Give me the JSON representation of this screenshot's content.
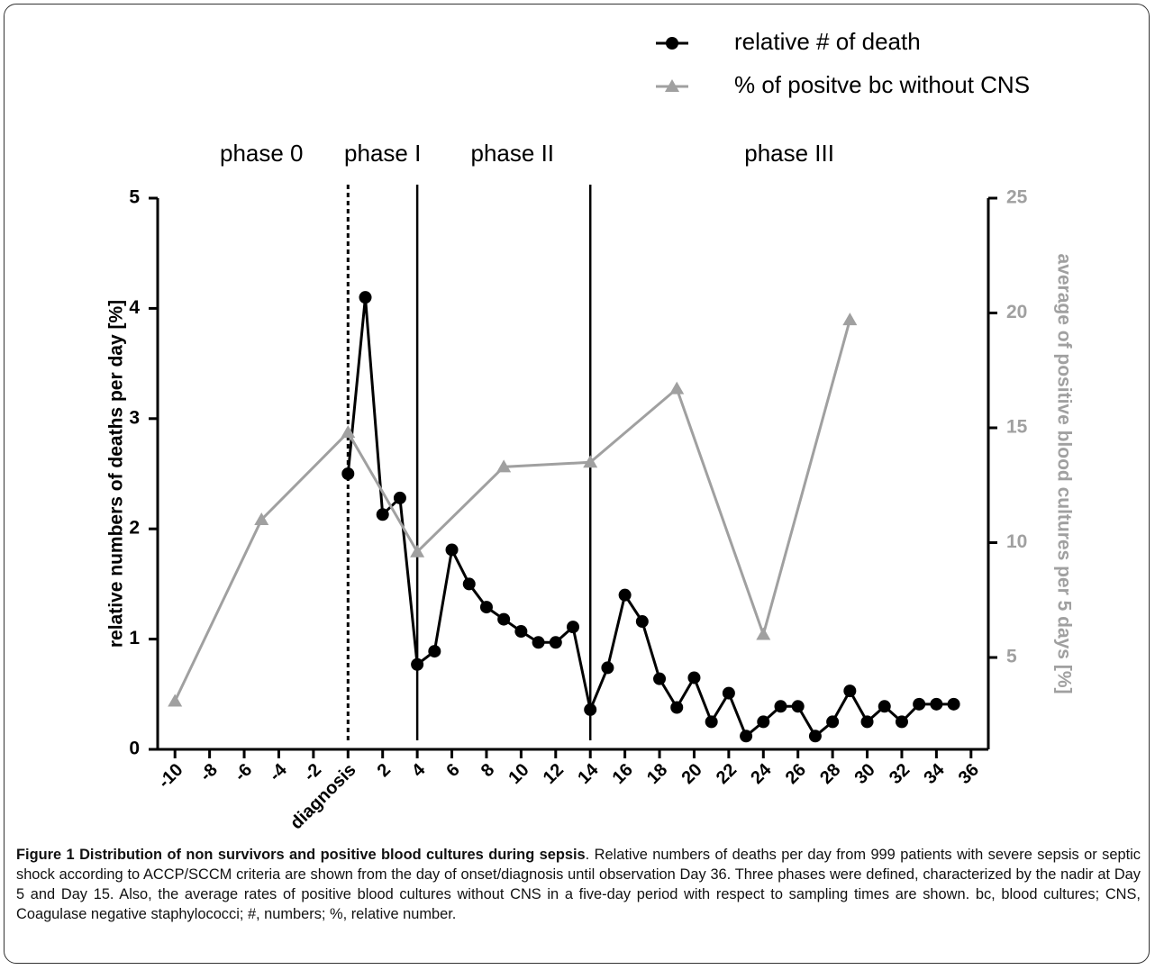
{
  "chart_data": {
    "type": "line",
    "legend": "top-right",
    "phase_labels": [
      {
        "x": -5,
        "label": "phase 0"
      },
      {
        "x": 2,
        "label": "phase I"
      },
      {
        "x": 9.5,
        "label": "phase II"
      },
      {
        "x": 25.5,
        "label": "phase III"
      }
    ],
    "phase_boundaries": [
      {
        "x": 0,
        "style": "dotted"
      },
      {
        "x": 4,
        "style": "solid"
      },
      {
        "x": 14,
        "style": "solid"
      }
    ],
    "ylabel": "relative numbers of deaths per day [%]",
    "y2label": "average of positive blood cultures per 5 days [%]",
    "xlim": [
      -11,
      37
    ],
    "xticks": [
      -10,
      -8,
      -6,
      -4,
      -2,
      {
        "value": 0,
        "label": "diagnosis"
      },
      2,
      4,
      6,
      8,
      10,
      12,
      14,
      16,
      18,
      20,
      22,
      24,
      26,
      28,
      30,
      32,
      34,
      36
    ],
    "ylim": [
      0,
      5
    ],
    "yticks": [
      0,
      1,
      2,
      3,
      4,
      5
    ],
    "y2lim": [
      1,
      25
    ],
    "y2ticks": [
      5,
      10,
      15,
      20,
      25
    ],
    "series": [
      {
        "name": "relative # of death",
        "color": "#000000",
        "marker": "circle",
        "x": [
          0,
          1,
          2,
          3,
          4,
          5,
          6,
          7,
          8,
          9,
          10,
          11,
          12,
          13,
          14,
          15,
          16,
          17,
          18,
          19,
          20,
          21,
          22,
          23,
          24,
          25,
          26,
          27,
          28,
          29,
          30,
          31,
          32,
          33,
          34,
          35
        ],
        "values": [
          2.5,
          4.1,
          2.13,
          2.28,
          0.77,
          0.89,
          1.81,
          1.5,
          1.29,
          1.18,
          1.07,
          0.97,
          0.97,
          1.11,
          0.36,
          0.74,
          1.4,
          1.16,
          0.64,
          0.38,
          0.65,
          0.25,
          0.51,
          0.12,
          0.25,
          0.39,
          0.39,
          0.12,
          0.25,
          0.53,
          0.25,
          0.39,
          0.25,
          0.41,
          0.41,
          0.41
        ]
      },
      {
        "name": "% of positve bc without CNS",
        "color": "#a0a0a0",
        "marker": "triangle",
        "axis": "y2",
        "x": [
          -10,
          -5,
          0,
          4,
          9,
          14,
          19,
          24,
          29
        ],
        "values": [
          3.1,
          11.0,
          14.8,
          9.6,
          13.3,
          13.5,
          16.7,
          6.0,
          19.7
        ]
      }
    ],
    "caption_title": "Figure 1 Distribution of non survivors and positive blood cultures during sepsis",
    "caption": ". Relative numbers of deaths per day from 999 patients with severe sepsis or septic shock according to ACCP/SCCM criteria are shown from the day of onset/diagnosis until observation Day 36. Three phases were defined, characterized by the nadir at Day 5 and Day 15. Also, the average rates of positive blood cultures without CNS in a five-day period with respect to sampling times are shown. bc, blood cultures; CNS, Coagulase negative staphylococci; #, numbers; %, relative number."
  }
}
